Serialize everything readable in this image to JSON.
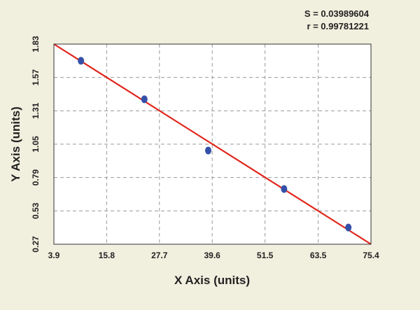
{
  "colors": {
    "background": "#f1efde",
    "plot_area": "#ffffff",
    "fit_line": "#e0251b",
    "points": "#3450a8",
    "grid": "#9a9a9a"
  },
  "chart_data": {
    "type": "scatter",
    "stats": {
      "s_label": "S = 0.03989604",
      "r_label": "r = 0.99781221"
    },
    "xlabel": "X Axis (units)",
    "ylabel": "Y Axis (units)",
    "xlim": [
      3.9,
      75.4
    ],
    "ylim": [
      0.27,
      1.83
    ],
    "x_ticks": [
      "3.9",
      "15.8",
      "27.7",
      "39.6",
      "51.5",
      "63.5",
      "75.4"
    ],
    "y_ticks": [
      "0.27",
      "0.53",
      "0.79",
      "1.05",
      "1.31",
      "1.57",
      "1.83"
    ],
    "points": [
      {
        "x": 10.0,
        "y": 1.7
      },
      {
        "x": 24.3,
        "y": 1.4
      },
      {
        "x": 38.7,
        "y": 1.0
      },
      {
        "x": 55.8,
        "y": 0.7
      },
      {
        "x": 70.3,
        "y": 0.4
      }
    ],
    "fit_line": {
      "x": [
        3.9,
        75.4
      ],
      "y": [
        1.83,
        0.27
      ]
    },
    "grid": true,
    "legend": "none"
  }
}
